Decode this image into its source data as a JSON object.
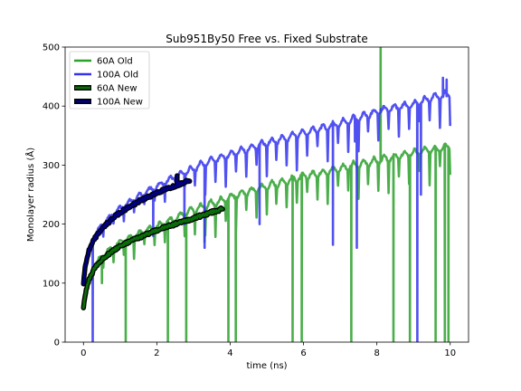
{
  "chart_data": {
    "type": "line",
    "title": "Sub951By50 Free vs. Fixed Substrate",
    "xlabel": "time (ns)",
    "ylabel": "Monolayer radius (Å)",
    "xlim": [
      -0.5,
      10.5
    ],
    "ylim": [
      0,
      500
    ],
    "xticks": [
      0,
      2,
      4,
      6,
      8,
      10
    ],
    "yticks": [
      0,
      100,
      200,
      300,
      400,
      500
    ],
    "legend_position": "top-left",
    "series": [
      {
        "name": "60A Old",
        "color": "#2ca02c",
        "style": "old",
        "base": {
          "x": [
            0,
            0.05,
            0.15,
            0.3,
            0.5,
            0.8,
            1.0,
            1.5,
            2.0,
            2.5,
            3.0,
            3.5,
            4.0,
            5.0,
            6.0,
            7.0,
            8.0,
            9.0,
            10.0
          ],
          "y": [
            62,
            85,
            110,
            130,
            145,
            160,
            168,
            182,
            195,
            208,
            222,
            232,
            243,
            262,
            278,
            292,
            305,
            318,
            330
          ]
        },
        "x_end": 10.0,
        "spikes": [
          {
            "x": 0.5,
            "y": 100
          },
          {
            "x": 1.15,
            "y": 0
          },
          {
            "x": 2.3,
            "y": 0
          },
          {
            "x": 2.8,
            "y": 0
          },
          {
            "x": 3.3,
            "y": 170
          },
          {
            "x": 3.95,
            "y": 0
          },
          {
            "x": 4.15,
            "y": 0
          },
          {
            "x": 5.7,
            "y": 0
          },
          {
            "x": 5.95,
            "y": 0
          },
          {
            "x": 7.3,
            "y": 0
          },
          {
            "x": 8.1,
            "y": 500
          },
          {
            "x": 8.45,
            "y": 0
          },
          {
            "x": 8.9,
            "y": 0
          },
          {
            "x": 9.6,
            "y": 0
          },
          {
            "x": 9.85,
            "y": 0
          },
          {
            "x": 9.95,
            "y": 0
          }
        ]
      },
      {
        "name": "100A Old",
        "color": "#3333ee",
        "style": "old",
        "base": {
          "x": [
            0,
            0.05,
            0.15,
            0.3,
            0.5,
            0.8,
            1.0,
            1.5,
            2.0,
            2.5,
            3.0,
            3.5,
            4.0,
            5.0,
            6.0,
            7.0,
            7.5,
            8.0,
            8.5,
            9.0,
            9.5,
            10.0
          ],
          "y": [
            100,
            130,
            158,
            180,
            198,
            215,
            226,
            245,
            262,
            278,
            292,
            305,
            315,
            335,
            352,
            368,
            378,
            388,
            395,
            400,
            412,
            418
          ]
        },
        "x_end": 10.0,
        "spikes": [
          {
            "x": 0.25,
            "y": 0
          },
          {
            "x": 1.9,
            "y": 180
          },
          {
            "x": 2.75,
            "y": 200
          },
          {
            "x": 3.3,
            "y": 160
          },
          {
            "x": 4.8,
            "y": 200
          },
          {
            "x": 6.8,
            "y": 165
          },
          {
            "x": 7.4,
            "y": 340
          },
          {
            "x": 7.45,
            "y": 160
          },
          {
            "x": 8.1,
            "y": 395
          },
          {
            "x": 9.1,
            "y": 0
          },
          {
            "x": 9.2,
            "y": 250
          },
          {
            "x": 9.8,
            "y": 448
          },
          {
            "x": 9.9,
            "y": 445
          }
        ]
      },
      {
        "name": "60A New",
        "color": "#0a6b0a",
        "style": "new",
        "base": {
          "x": [
            0,
            0.05,
            0.15,
            0.3,
            0.5,
            0.8,
            1.0,
            1.5,
            2.0,
            2.5,
            3.0,
            3.5,
            3.8
          ],
          "y": [
            60,
            82,
            105,
            125,
            140,
            155,
            163,
            177,
            190,
            200,
            210,
            220,
            226
          ]
        },
        "x_end": 3.8,
        "spikes": []
      },
      {
        "name": "100A New",
        "color": "#000080",
        "style": "new",
        "base": {
          "x": [
            0,
            0.05,
            0.15,
            0.3,
            0.5,
            0.8,
            1.0,
            1.5,
            2.0,
            2.5,
            2.9
          ],
          "y": [
            100,
            130,
            155,
            175,
            192,
            210,
            220,
            238,
            253,
            265,
            275
          ]
        },
        "x_end": 2.9,
        "spikes": [
          {
            "x": 2.55,
            "y": 282
          }
        ]
      }
    ]
  }
}
